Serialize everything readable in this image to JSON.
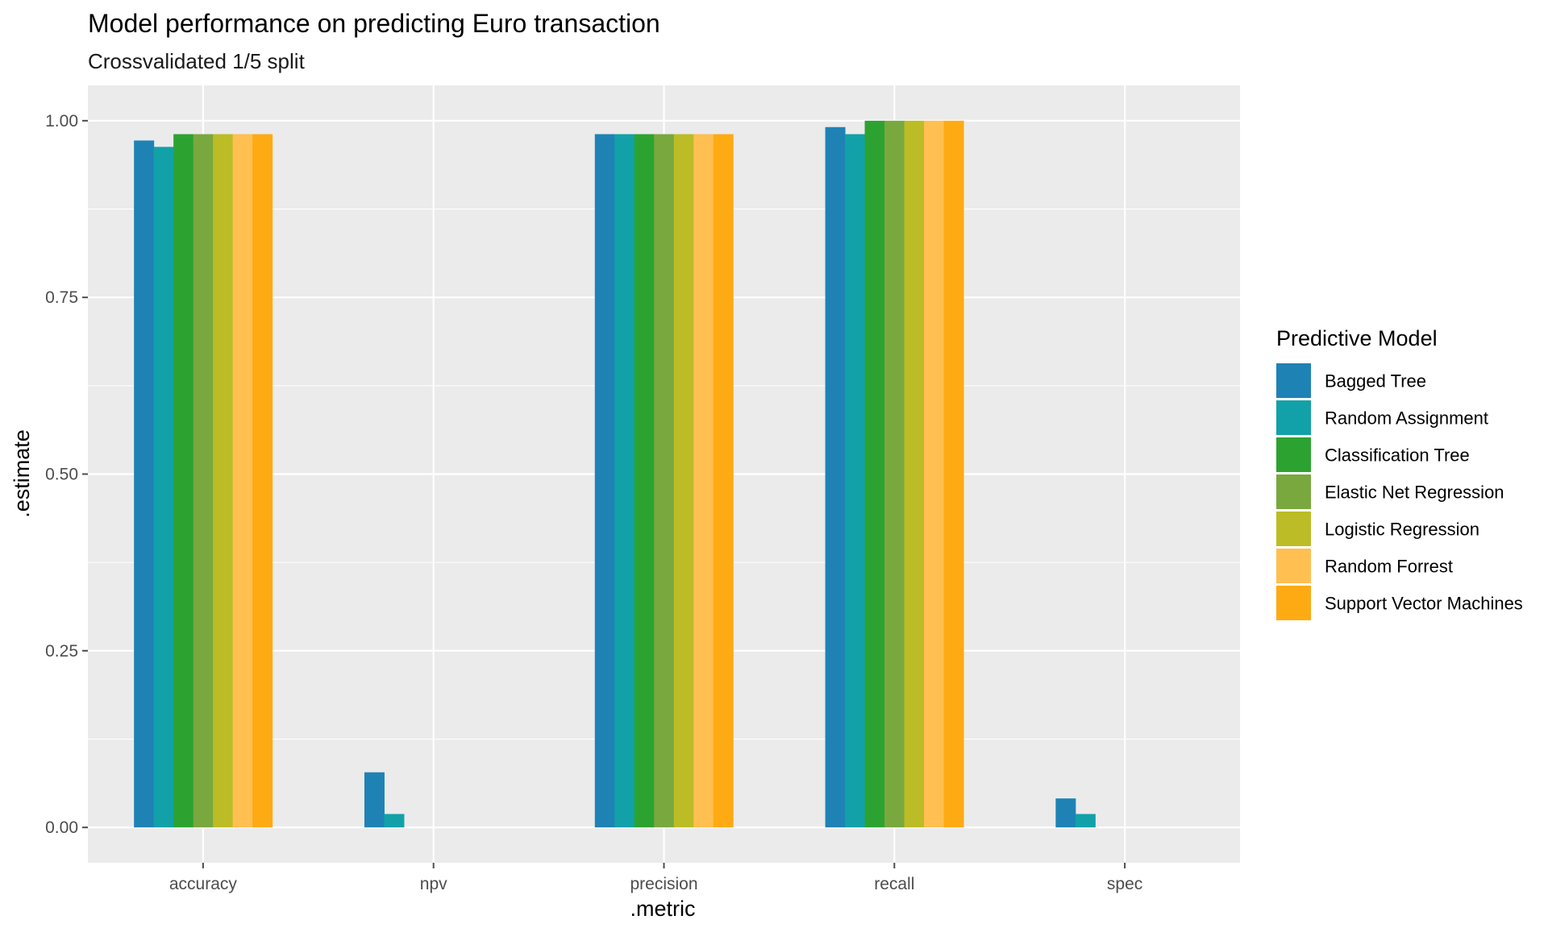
{
  "chart_data": {
    "type": "bar",
    "title": "Model performance on predicting Euro transaction",
    "subtitle": "Crossvalidated 1/5 split",
    "xlabel": ".metric",
    "ylabel": ".estimate",
    "ylim": [
      -0.05,
      1.05
    ],
    "yticks": [
      0.0,
      0.25,
      0.5,
      0.75,
      1.0
    ],
    "ytick_labels": [
      "0.00",
      "0.25",
      "0.50",
      "0.75",
      "1.00"
    ],
    "categories": [
      "accuracy",
      "npv",
      "precision",
      "recall",
      "spec"
    ],
    "legend_title": "Predictive Model",
    "legend_position": "right",
    "grid": true,
    "series": [
      {
        "name": "Bagged Tree",
        "color": "#1F82B4",
        "values": [
          0.972,
          0.078,
          0.981,
          0.991,
          0.041
        ]
      },
      {
        "name": "Random Assignment",
        "color": "#12A1A8",
        "values": [
          0.963,
          0.019,
          0.981,
          0.981,
          0.019
        ]
      },
      {
        "name": "Classification Tree",
        "color": "#2CA331",
        "values": [
          0.981,
          0.0,
          0.981,
          1.0,
          0.0
        ]
      },
      {
        "name": "Elastic Net Regression",
        "color": "#79A83E",
        "values": [
          0.981,
          0.0,
          0.981,
          1.0,
          0.0
        ]
      },
      {
        "name": "Logistic Regression",
        "color": "#BCBC26",
        "values": [
          0.981,
          0.0,
          0.981,
          1.0,
          0.0
        ]
      },
      {
        "name": "Random Forrest",
        "color": "#FFBF51",
        "values": [
          0.981,
          0.0,
          0.981,
          1.0,
          0.0
        ]
      },
      {
        "name": "Support Vector Machines",
        "color": "#FEAA13",
        "values": [
          0.981,
          0.0,
          0.981,
          1.0,
          0.0
        ]
      }
    ],
    "colors": {
      "panel": "#EBEBEB",
      "grid": "#FFFFFF",
      "tick": "#4D4D4D"
    }
  }
}
